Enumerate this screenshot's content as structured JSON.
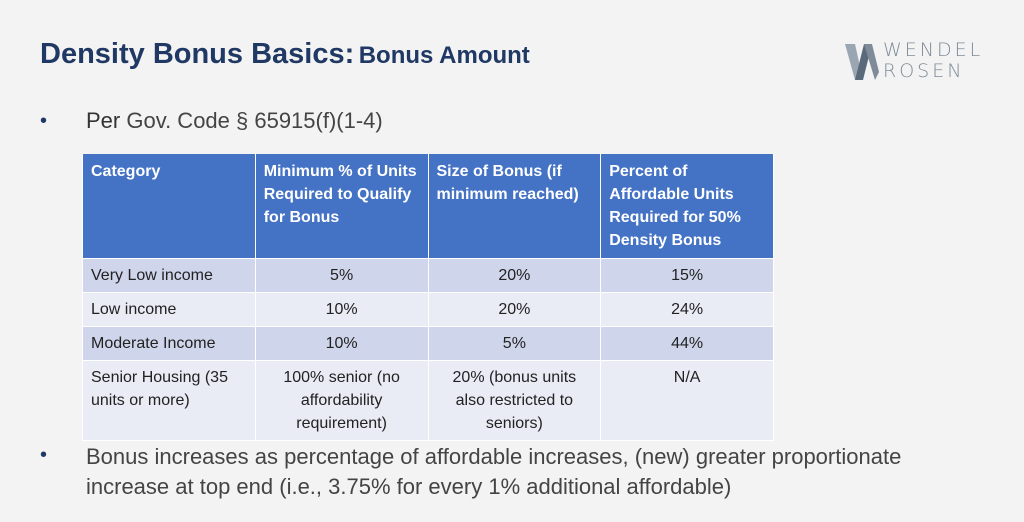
{
  "title": {
    "main": "Density Bonus Basics:",
    "sub": "Bonus Amount"
  },
  "logo": {
    "line1": "WENDEL",
    "line2": "ROSEN",
    "mark_color": "#5a6a7b"
  },
  "bullets": {
    "symbol": "•",
    "first_prefix": "Per",
    "first_text": " Gov. Code § 65915(f)(1-4)",
    "second_text": "Bonus increases as percentage of affordable increases, (new) greater proportionate increase at top end (i.e., 3.75% for every 1% additional affordable)"
  },
  "table": {
    "headers": [
      "Category",
      "Minimum % of Units Required to Qualify for Bonus",
      "Size of Bonus (if minimum reached)",
      "Percent of Affordable Units Required for 50% Density Bonus"
    ],
    "rows": [
      [
        "Very Low income",
        "5%",
        "20%",
        "15%"
      ],
      [
        "Low income",
        "10%",
        "20%",
        "24%"
      ],
      [
        "Moderate Income",
        "10%",
        "5%",
        "44%"
      ],
      [
        "Senior Housing (35 units or more)",
        "100% senior (no affordability requirement)",
        "20% (bonus units also restricted to seniors)",
        "N/A"
      ]
    ]
  },
  "colors": {
    "title": "#1f3864",
    "header_bg": "#4472c4",
    "row_odd": "#cfd5ea",
    "row_even": "#e9ebf5"
  }
}
